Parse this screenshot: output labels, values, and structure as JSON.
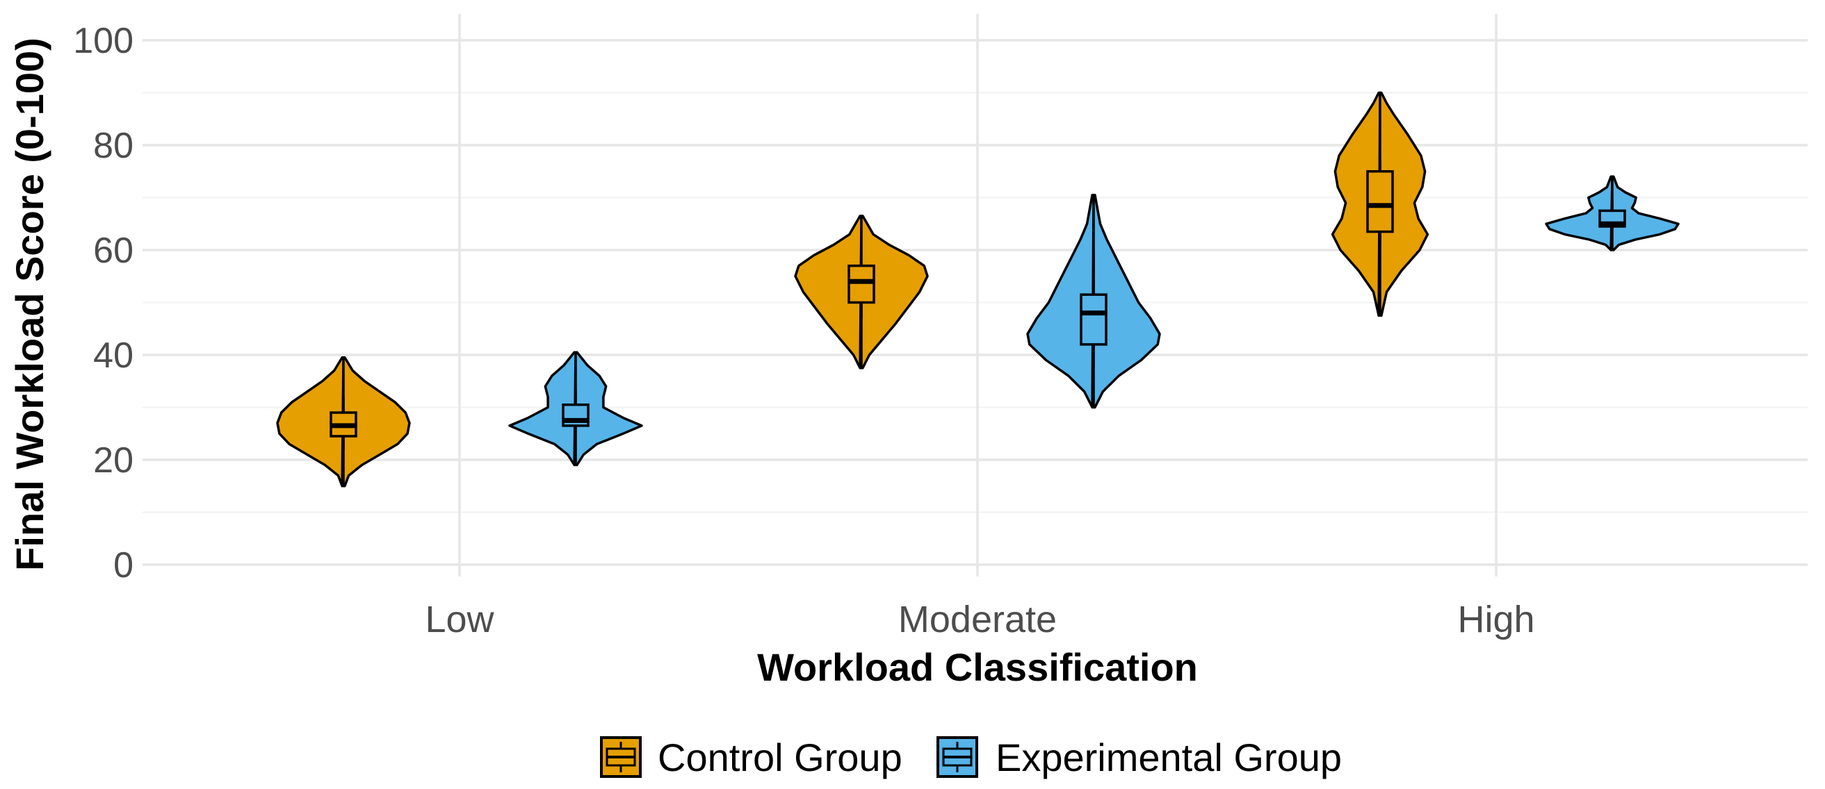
{
  "chart_data": {
    "type": "violin",
    "title": "",
    "xlabel": "Workload Classification",
    "ylabel": "Final Workload Score (0-100)",
    "ylim": [
      0,
      100
    ],
    "yticks": [
      "0",
      "20",
      "40",
      "60",
      "80",
      "100"
    ],
    "categories": [
      "Low",
      "Moderate",
      "High"
    ],
    "grid": true,
    "legend_position": "bottom",
    "series": [
      {
        "name": "Control Group",
        "color": "#E69F00",
        "groups": [
          {
            "category": "Low",
            "violin_range": [
              15,
              39.5
            ],
            "whisker_low": 22,
            "q1": 24.5,
            "median": 26.5,
            "q3": 29,
            "whisker_high": 32,
            "density": [
              [
                15,
                0.02
              ],
              [
                17,
                0.08
              ],
              [
                19,
                0.28
              ],
              [
                21,
                0.55
              ],
              [
                23,
                0.82
              ],
              [
                25,
                0.97
              ],
              [
                27,
                1.0
              ],
              [
                29,
                0.94
              ],
              [
                31,
                0.78
              ],
              [
                33,
                0.55
              ],
              [
                35,
                0.32
              ],
              [
                37,
                0.14
              ],
              [
                39.5,
                0.02
              ]
            ]
          },
          {
            "category": "Moderate",
            "violin_range": [
              37.5,
              66.5
            ],
            "whisker_low": 47,
            "q1": 50,
            "median": 54,
            "q3": 57,
            "whisker_high": 57.5,
            "density": [
              [
                37.5,
                0.02
              ],
              [
                40,
                0.12
              ],
              [
                43,
                0.32
              ],
              [
                46,
                0.52
              ],
              [
                49,
                0.7
              ],
              [
                52,
                0.88
              ],
              [
                55,
                1.0
              ],
              [
                57,
                0.95
              ],
              [
                59,
                0.72
              ],
              [
                61,
                0.42
              ],
              [
                63,
                0.18
              ],
              [
                66.5,
                0.02
              ]
            ]
          },
          {
            "category": "High",
            "violin_range": [
              47.5,
              90
            ],
            "whisker_low": 61,
            "q1": 63.5,
            "median": 68.5,
            "q3": 75,
            "whisker_high": 77,
            "density": [
              [
                47.5,
                0.02
              ],
              [
                52,
                0.1
              ],
              [
                56,
                0.32
              ],
              [
                60,
                0.6
              ],
              [
                63,
                0.72
              ],
              [
                66,
                0.58
              ],
              [
                69,
                0.52
              ],
              [
                72,
                0.64
              ],
              [
                75,
                0.68
              ],
              [
                78,
                0.62
              ],
              [
                82,
                0.42
              ],
              [
                86,
                0.2
              ],
              [
                88,
                0.1
              ],
              [
                90,
                0.02
              ]
            ]
          }
        ]
      },
      {
        "name": "Experimental Group",
        "color": "#56B4E9",
        "groups": [
          {
            "category": "Low",
            "violin_range": [
              19,
              40.5
            ],
            "whisker_low": 26,
            "q1": 26.5,
            "median": 27.5,
            "q3": 30.5,
            "whisker_high": 33.5,
            "density": [
              [
                19,
                0.02
              ],
              [
                21,
                0.12
              ],
              [
                23,
                0.32
              ],
              [
                25,
                0.72
              ],
              [
                26.5,
                1.0
              ],
              [
                28,
                0.72
              ],
              [
                30,
                0.42
              ],
              [
                32,
                0.42
              ],
              [
                34,
                0.46
              ],
              [
                36,
                0.36
              ],
              [
                38,
                0.18
              ],
              [
                40.5,
                0.02
              ]
            ]
          },
          {
            "category": "Moderate",
            "violin_range": [
              30,
              70.5
            ],
            "whisker_low": 41,
            "q1": 42,
            "median": 48,
            "q3": 51.5,
            "whisker_high": 59.5,
            "density": [
              [
                30,
                0.02
              ],
              [
                33,
                0.14
              ],
              [
                36,
                0.38
              ],
              [
                39,
                0.72
              ],
              [
                42,
                0.97
              ],
              [
                44,
                1.0
              ],
              [
                47,
                0.86
              ],
              [
                50,
                0.68
              ],
              [
                53,
                0.56
              ],
              [
                56,
                0.44
              ],
              [
                59,
                0.32
              ],
              [
                62,
                0.2
              ],
              [
                65,
                0.1
              ],
              [
                70.5,
                0.02
              ]
            ]
          },
          {
            "category": "High",
            "violin_range": [
              60,
              74
            ],
            "whisker_low": 64,
            "q1": 64.5,
            "median": 65,
            "q3": 67.5,
            "whisker_high": 69.5,
            "density": [
              [
                60,
                0.02
              ],
              [
                61,
                0.1
              ],
              [
                62,
                0.35
              ],
              [
                63,
                0.72
              ],
              [
                64,
                0.95
              ],
              [
                65,
                1.0
              ],
              [
                66,
                0.72
              ],
              [
                67,
                0.4
              ],
              [
                68,
                0.3
              ],
              [
                69,
                0.34
              ],
              [
                70,
                0.36
              ],
              [
                71,
                0.2
              ],
              [
                72,
                0.08
              ],
              [
                74,
                0.02
              ]
            ]
          }
        ]
      }
    ]
  }
}
